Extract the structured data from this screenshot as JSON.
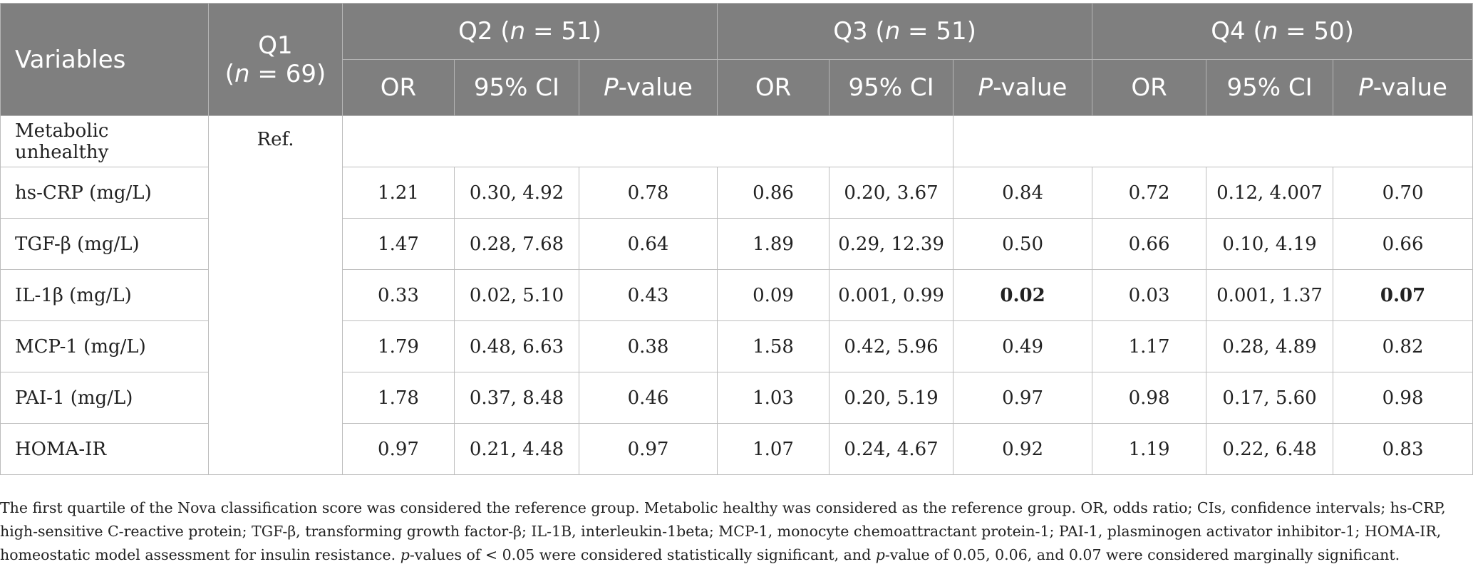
{
  "header": {
    "variables": "Variables",
    "q1_line1": "Q1",
    "q1_n_italic": "n",
    "q1_n_rest": " = 69)",
    "groups": [
      {
        "label": "Q2",
        "n_italic": "n",
        "n_rest": " = 51)"
      },
      {
        "label": "Q3",
        "n_italic": "n",
        "n_rest": " = 51)"
      },
      {
        "label": "Q4",
        "n_italic": "n",
        "n_rest": " = 50)"
      }
    ],
    "sub": {
      "or": "OR",
      "ci": "95% CI",
      "p_italic": "P",
      "p_rest": "-value"
    }
  },
  "rows": [
    {
      "label": "Metabolic unhealthy",
      "ref": "Ref."
    },
    {
      "label": "hs-CRP (mg/L)",
      "q2": [
        "1.21",
        "0.30, 4.92",
        "0.78"
      ],
      "q3": [
        "0.86",
        "0.20, 3.67",
        "0.84"
      ],
      "q4": [
        "0.72",
        "0.12, 4.007",
        "0.70"
      ]
    },
    {
      "label": "TGF-β (mg/L)",
      "q2": [
        "1.47",
        "0.28, 7.68",
        "0.64"
      ],
      "q3": [
        "1.89",
        "0.29, 12.39",
        "0.50"
      ],
      "q4": [
        "0.66",
        "0.10, 4.19",
        "0.66"
      ]
    },
    {
      "label": "IL-1β (mg/L)",
      "q2": [
        "0.33",
        "0.02, 5.10",
        "0.43"
      ],
      "q3": [
        "0.09",
        "0.001, 0.99",
        "0.02"
      ],
      "q4": [
        "0.03",
        "0.001, 1.37",
        "0.07"
      ]
    },
    {
      "label": "MCP-1 (mg/L)",
      "q2": [
        "1.79",
        "0.48, 6.63",
        "0.38"
      ],
      "q3": [
        "1.58",
        "0.42, 5.96",
        "0.49"
      ],
      "q4": [
        "1.17",
        "0.28, 4.89",
        "0.82"
      ]
    },
    {
      "label": "PAI-1 (mg/L)",
      "q2": [
        "1.78",
        "0.37, 8.48",
        "0.46"
      ],
      "q3": [
        "1.03",
        "0.20, 5.19",
        "0.97"
      ],
      "q4": [
        "0.98",
        "0.17, 5.60",
        "0.98"
      ]
    },
    {
      "label": "HOMA-IR",
      "q2": [
        "0.97",
        "0.21, 4.48",
        "0.97"
      ],
      "q3": [
        "1.07",
        "0.24, 4.67",
        "0.92"
      ],
      "q4": [
        "1.19",
        "0.22, 6.48",
        "0.83"
      ]
    }
  ],
  "footnote": {
    "part1": "The first quartile of the Nova classification score was considered the reference group. Metabolic healthy was considered as the reference group. OR, odds ratio; CIs, confidence intervals; hs-CRP, high-sensitive C-reactive protein; TGF-β, transforming growth factor-β; IL-1B, interleukin-1beta; MCP-1, monocyte chemoattractant protein-1; PAI-1, plasminogen activator inhibitor-1; HOMA-IR, homeostatic model assessment for insulin resistance. ",
    "p1_italic": "p",
    "part2": "-values of < 0.05 were considered statistically significant, and ",
    "p2_italic": "p",
    "part3": "-value of 0.05, 0.06, and 0.07 were considered marginally significant."
  }
}
